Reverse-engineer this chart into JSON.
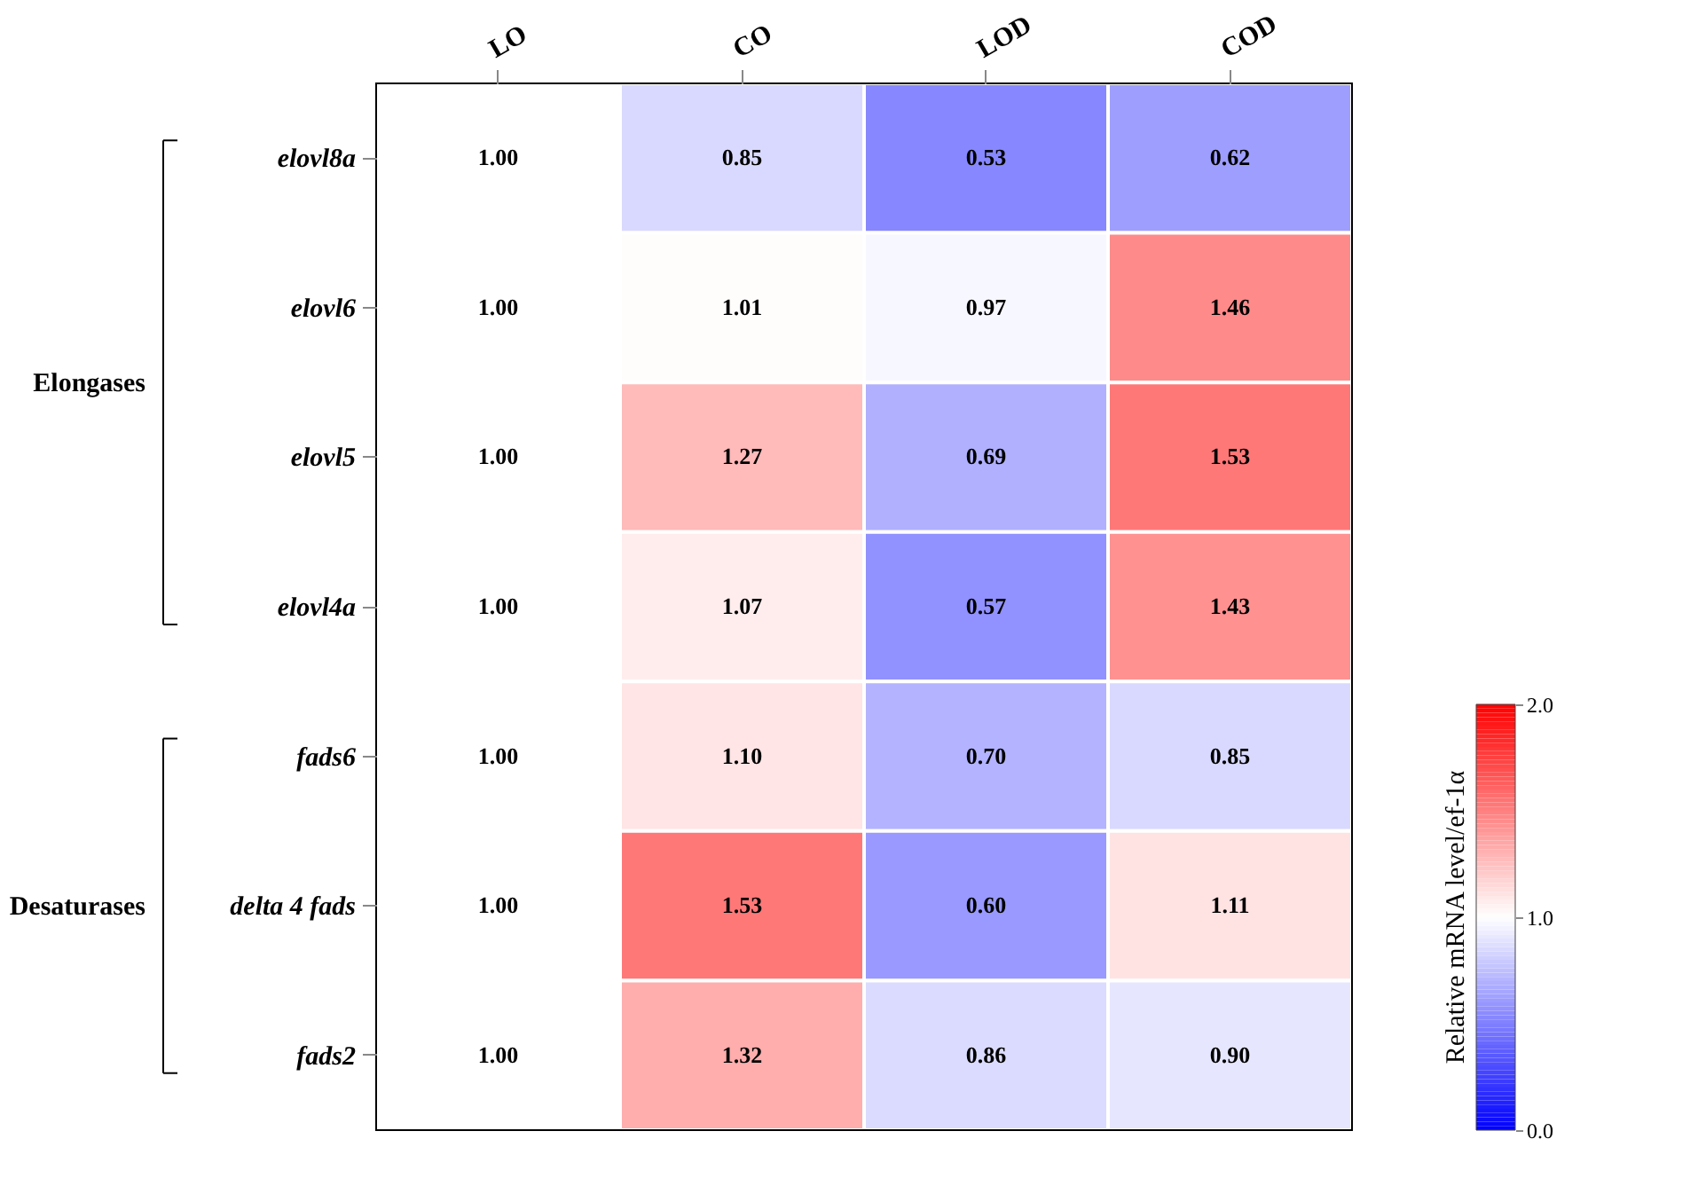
{
  "chart_data": {
    "type": "heatmap",
    "categories": [
      "LO",
      "CO",
      "LOD",
      "COD"
    ],
    "y_categories": [
      "elovl8a",
      "elovl6",
      "elovl5",
      "elovl4a",
      "fads6",
      "delta 4 fads",
      "fads2"
    ],
    "cells": [
      [
        1.0,
        0.85,
        0.53,
        0.62
      ],
      [
        1.0,
        1.01,
        0.97,
        1.46
      ],
      [
        1.0,
        1.27,
        0.69,
        1.53
      ],
      [
        1.0,
        1.07,
        0.57,
        1.43
      ],
      [
        1.0,
        1.1,
        0.7,
        0.85
      ],
      [
        1.0,
        1.53,
        0.6,
        1.11
      ],
      [
        1.0,
        1.32,
        0.86,
        0.9
      ]
    ],
    "cell_labels": [
      [
        "1.00",
        "0.85",
        "0.53",
        "0.62"
      ],
      [
        "1.00",
        "1.01",
        "0.97",
        "1.46"
      ],
      [
        "1.00",
        "1.27",
        "0.69",
        "1.53"
      ],
      [
        "1.00",
        "1.07",
        "0.57",
        "1.43"
      ],
      [
        "1.00",
        "1.10",
        "0.70",
        "0.85"
      ],
      [
        "1.00",
        "1.53",
        "0.60",
        "1.11"
      ],
      [
        "1.00",
        "1.32",
        "0.86",
        "0.90"
      ]
    ],
    "clabel": "Relative mRNA level/ef-1α",
    "clim": [
      0,
      2
    ],
    "cticks": [
      {
        "value": 0,
        "label": "0.0"
      },
      {
        "value": 1,
        "label": "1.0"
      },
      {
        "value": 2,
        "label": "2.0"
      }
    ],
    "annotations": [
      "Elongases",
      "Desaturases"
    ]
  }
}
